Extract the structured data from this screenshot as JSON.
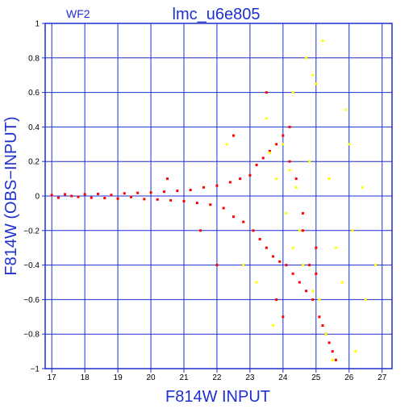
{
  "chart_data": {
    "type": "scatter",
    "title": "lmc_u6e805",
    "panel_label": "WF2",
    "xlabel": "F814W  INPUT",
    "ylabel": "F814W  (OBS−INPUT)",
    "xlim": [
      16.8,
      27.3
    ],
    "ylim": [
      -1,
      1
    ],
    "x_ticks": [
      17,
      18,
      19,
      20,
      21,
      22,
      23,
      24,
      25,
      26,
      27
    ],
    "y_ticks": [
      -1,
      -0.8,
      -0.6,
      -0.4,
      -0.2,
      0,
      0.2,
      0.4,
      0.6,
      0.8,
      1
    ],
    "y_tick_labels": [
      "−1",
      "−0.8",
      "−0.6",
      "−0.4",
      "−0.2",
      "0",
      "0.2",
      "0.4",
      "0.6",
      "0.8",
      "1"
    ],
    "grid": true,
    "colors": {
      "frame": "#1f2fd0",
      "series_main": "#ff0000",
      "series_secondary": "#ffff00",
      "text": "#1f2fd0"
    },
    "series": [
      {
        "color": "#ff0000",
        "points": [
          [
            17.0,
            0.005
          ],
          [
            17.2,
            -0.01
          ],
          [
            17.4,
            0.01
          ],
          [
            17.6,
            0.0
          ],
          [
            17.8,
            -0.005
          ],
          [
            18.0,
            0.01
          ],
          [
            18.2,
            -0.01
          ],
          [
            18.4,
            0.012
          ],
          [
            18.6,
            -0.012
          ],
          [
            18.8,
            0.006
          ],
          [
            19.0,
            -0.015
          ],
          [
            19.2,
            0.015
          ],
          [
            19.4,
            -0.006
          ],
          [
            19.6,
            0.018
          ],
          [
            19.8,
            -0.018
          ],
          [
            20.0,
            0.02
          ],
          [
            20.2,
            -0.02
          ],
          [
            20.4,
            0.025
          ],
          [
            20.6,
            -0.025
          ],
          [
            20.8,
            0.03
          ],
          [
            21.0,
            -0.03
          ],
          [
            21.2,
            0.035
          ],
          [
            21.4,
            -0.04
          ],
          [
            21.6,
            0.05
          ],
          [
            21.8,
            -0.05
          ],
          [
            22.0,
            0.06
          ],
          [
            22.2,
            -0.07
          ],
          [
            22.4,
            0.08
          ],
          [
            22.5,
            -0.12
          ],
          [
            22.7,
            0.1
          ],
          [
            22.8,
            -0.15
          ],
          [
            23.0,
            0.12
          ],
          [
            23.1,
            -0.2
          ],
          [
            23.2,
            0.18
          ],
          [
            23.3,
            -0.25
          ],
          [
            23.4,
            0.22
          ],
          [
            23.5,
            -0.3
          ],
          [
            23.6,
            0.26
          ],
          [
            23.7,
            -0.35
          ],
          [
            23.8,
            0.3
          ],
          [
            23.9,
            -0.38
          ],
          [
            24.0,
            0.35
          ],
          [
            24.1,
            -0.4
          ],
          [
            24.2,
            0.2
          ],
          [
            24.3,
            -0.45
          ],
          [
            24.4,
            0.1
          ],
          [
            24.5,
            -0.5
          ],
          [
            24.6,
            -0.1
          ],
          [
            24.7,
            -0.55
          ],
          [
            24.8,
            -0.4
          ],
          [
            24.9,
            -0.6
          ],
          [
            25.0,
            -0.45
          ],
          [
            25.1,
            -0.7
          ],
          [
            25.2,
            -0.75
          ],
          [
            25.3,
            -0.8
          ],
          [
            25.4,
            -0.85
          ],
          [
            25.5,
            -0.9
          ],
          [
            25.6,
            -0.95
          ],
          [
            22.0,
            -0.4
          ],
          [
            22.5,
            0.35
          ],
          [
            23.5,
            0.6
          ],
          [
            24.0,
            -0.7
          ],
          [
            21.5,
            -0.2
          ],
          [
            20.5,
            0.1
          ],
          [
            24.2,
            0.4
          ],
          [
            23.8,
            -0.6
          ],
          [
            25.0,
            -0.3
          ],
          [
            24.6,
            -0.2
          ]
        ]
      },
      {
        "color": "#ffff00",
        "points": [
          [
            23.6,
            0.25
          ],
          [
            23.8,
            0.1
          ],
          [
            24.0,
            0.3
          ],
          [
            24.1,
            -0.1
          ],
          [
            24.2,
            0.15
          ],
          [
            24.3,
            -0.3
          ],
          [
            24.4,
            0.05
          ],
          [
            24.5,
            -0.2
          ],
          [
            24.6,
            -0.4
          ],
          [
            24.8,
            0.2
          ],
          [
            24.9,
            -0.55
          ],
          [
            25.0,
            0.65
          ],
          [
            25.1,
            -0.6
          ],
          [
            25.3,
            -0.8
          ],
          [
            25.5,
            -0.95
          ],
          [
            25.8,
            -0.5
          ],
          [
            26.0,
            0.3
          ],
          [
            26.1,
            -0.2
          ],
          [
            26.2,
            -0.9
          ],
          [
            26.5,
            -0.6
          ],
          [
            25.4,
            0.1
          ],
          [
            24.7,
            0.8
          ],
          [
            25.2,
            0.9
          ],
          [
            23.5,
            0.45
          ],
          [
            22.8,
            -0.4
          ],
          [
            22.3,
            0.3
          ],
          [
            24.3,
            0.6
          ],
          [
            25.6,
            -0.3
          ],
          [
            26.4,
            0.05
          ],
          [
            23.2,
            -0.5
          ],
          [
            26.8,
            -0.4
          ],
          [
            25.9,
            0.5
          ],
          [
            24.9,
            0.7
          ],
          [
            23.7,
            -0.75
          ]
        ]
      }
    ]
  }
}
